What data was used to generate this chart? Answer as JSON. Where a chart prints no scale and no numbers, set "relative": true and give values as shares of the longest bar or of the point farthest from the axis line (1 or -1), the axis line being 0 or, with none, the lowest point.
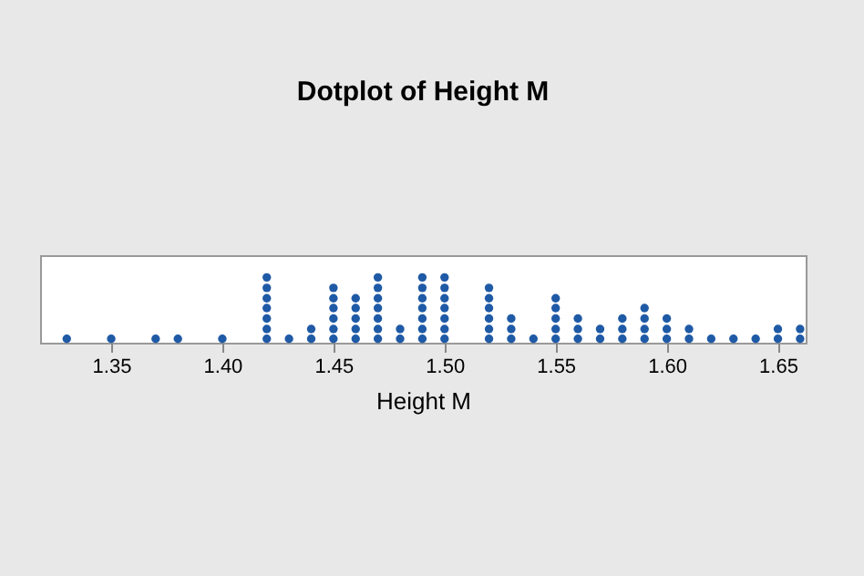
{
  "chart_data": {
    "type": "scatter",
    "title": "Dotplot of Height M",
    "xlabel": "Height M",
    "relative": true,
    "tick_labels": "x",
    "marker": "circle",
    "color": "#1f5aa6",
    "xlim": [
      1.318,
      1.6625
    ],
    "xticks": [
      {
        "value": 1.35,
        "label": "1.35"
      },
      {
        "value": 1.4,
        "label": "1.40"
      },
      {
        "value": 1.45,
        "label": "1.45"
      },
      {
        "value": 1.5,
        "label": "1.50"
      },
      {
        "value": 1.55,
        "label": "1.55"
      },
      {
        "value": 1.6,
        "label": "1.60"
      },
      {
        "value": 1.65,
        "label": "1.65"
      }
    ],
    "x": [
      1.33,
      1.35,
      1.37,
      1.38,
      1.4,
      1.42,
      1.42,
      1.42,
      1.42,
      1.42,
      1.42,
      1.42,
      1.43,
      1.44,
      1.44,
      1.45,
      1.45,
      1.45,
      1.45,
      1.45,
      1.45,
      1.46,
      1.46,
      1.46,
      1.46,
      1.46,
      1.47,
      1.47,
      1.47,
      1.47,
      1.47,
      1.47,
      1.47,
      1.48,
      1.48,
      1.49,
      1.49,
      1.49,
      1.49,
      1.49,
      1.49,
      1.49,
      1.5,
      1.5,
      1.5,
      1.5,
      1.5,
      1.5,
      1.5,
      1.52,
      1.52,
      1.52,
      1.52,
      1.52,
      1.52,
      1.53,
      1.53,
      1.53,
      1.54,
      1.55,
      1.55,
      1.55,
      1.55,
      1.55,
      1.56,
      1.56,
      1.56,
      1.57,
      1.57,
      1.58,
      1.58,
      1.58,
      1.59,
      1.59,
      1.59,
      1.59,
      1.6,
      1.6,
      1.6,
      1.61,
      1.61,
      1.62,
      1.63,
      1.64,
      1.65,
      1.65,
      1.66,
      1.66
    ],
    "values": [
      0.06,
      0.06,
      0.06,
      0.06,
      0.06,
      0.06,
      0.21,
      0.37,
      0.53,
      0.68,
      0.84,
      1,
      0.06,
      0.06,
      0.21,
      0.06,
      0.21,
      0.37,
      0.53,
      0.68,
      0.84,
      0.06,
      0.21,
      0.37,
      0.53,
      0.68,
      0.06,
      0.21,
      0.37,
      0.53,
      0.68,
      0.84,
      1,
      0.06,
      0.21,
      0.06,
      0.21,
      0.37,
      0.53,
      0.68,
      0.84,
      1,
      0.06,
      0.21,
      0.37,
      0.53,
      0.68,
      0.84,
      1,
      0.06,
      0.21,
      0.37,
      0.53,
      0.68,
      0.84,
      0.06,
      0.21,
      0.37,
      0.06,
      0.06,
      0.21,
      0.37,
      0.53,
      0.68,
      0.06,
      0.21,
      0.37,
      0.06,
      0.21,
      0.06,
      0.21,
      0.37,
      0.06,
      0.21,
      0.37,
      0.53,
      0.06,
      0.21,
      0.37,
      0.06,
      0.21,
      0.06,
      0.06,
      0.06,
      0.06,
      0.21,
      0.06,
      0.21
    ]
  }
}
